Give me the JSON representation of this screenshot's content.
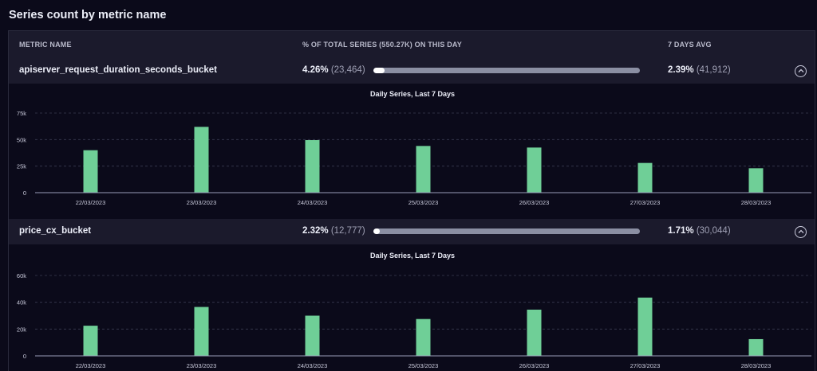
{
  "page_title": "Series count by metric name",
  "table": {
    "headers": {
      "metric_name": "METRIC NAME",
      "pct_total": "% OF TOTAL SERIES (550.27K) ON THIS DAY",
      "avg": "7 DAYS AVG"
    },
    "rows": [
      {
        "name": "apiserver_request_duration_seconds_bucket",
        "pct": "4.26%",
        "pct_count": "(23,464)",
        "pct_value": 4.26,
        "avg": "2.39%",
        "avg_count": "(41,912)",
        "toggle_icon": "chevron-up-icon"
      },
      {
        "name": "price_cx_bucket",
        "pct": "2.32%",
        "pct_count": "(12,777)",
        "pct_value": 2.32,
        "avg": "1.71%",
        "avg_count": "(30,044)",
        "toggle_icon": "chevron-up-icon"
      }
    ]
  },
  "chart_data": [
    {
      "type": "bar",
      "title": "Daily Series, Last 7 Days",
      "categories": [
        "22/03/2023",
        "23/03/2023",
        "24/03/2023",
        "25/03/2023",
        "26/03/2023",
        "27/03/2023",
        "28/03/2023"
      ],
      "values": [
        40000,
        62000,
        49500,
        44000,
        42500,
        28000,
        23000
      ],
      "yticks": [
        0,
        25000,
        50000,
        75000
      ],
      "ytick_labels": [
        "0",
        "25k",
        "50k",
        "75k"
      ],
      "ylim": [
        0,
        75000
      ],
      "grid": true,
      "bar_color": "#6fcf97"
    },
    {
      "type": "bar",
      "title": "Daily Series, Last 7 Days",
      "categories": [
        "22/03/2023",
        "23/03/2023",
        "24/03/2023",
        "25/03/2023",
        "26/03/2023",
        "27/03/2023",
        "28/03/2023"
      ],
      "values": [
        22500,
        36500,
        30000,
        27500,
        34500,
        43500,
        12500
      ],
      "yticks": [
        0,
        20000,
        40000,
        60000
      ],
      "ytick_labels": [
        "0",
        "20k",
        "40k",
        "60k"
      ],
      "ylim": [
        0,
        60000
      ],
      "grid": true,
      "bar_color": "#6fcf97"
    }
  ]
}
